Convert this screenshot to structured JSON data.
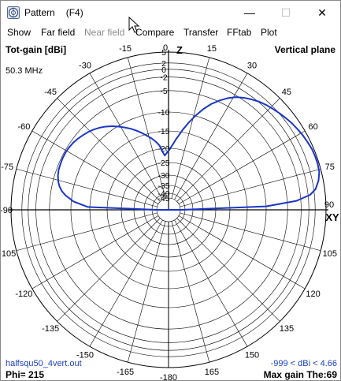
{
  "window": {
    "title": "Pattern",
    "title_shortcut": "(F4)",
    "controls": {
      "minimize": "—",
      "maximize": "☐",
      "close": "✕"
    }
  },
  "menu": [
    {
      "label": "Show",
      "enabled": true
    },
    {
      "label": "Far field",
      "enabled": true
    },
    {
      "label": "Near field",
      "enabled": false
    },
    {
      "label": "Compare",
      "enabled": true
    },
    {
      "label": "Transfer",
      "enabled": true
    },
    {
      "label": "FFtab",
      "enabled": true
    },
    {
      "label": "Plot",
      "enabled": true
    }
  ],
  "plot": {
    "quantity": "Tot-gain [dBi]",
    "plane": "Vertical plane",
    "frequency": "50.3 MHz",
    "file": "halfsqu50_4vert.out",
    "phi": "Phi= 215",
    "gain_range": "-999 < dBi < 4.66",
    "max_gain": "Max gain The:69",
    "axis_labels": {
      "z": "Z",
      "xy": "XY"
    },
    "angle_labels": [
      "0",
      "15",
      "30",
      "45",
      "60",
      "75",
      "90",
      "105",
      "120",
      "135",
      "150",
      "165",
      "-180",
      "-165",
      "-150",
      "-135",
      "-120",
      "-105",
      "-90",
      "-75",
      "-60",
      "-45",
      "-30",
      "-15"
    ],
    "db_ticks": [
      "5",
      "2",
      "0",
      "-2",
      "-5",
      "-10",
      "-15",
      "-20",
      "-25",
      "-30",
      "-35",
      "-40",
      "-45"
    ],
    "curve_color": "#1a35c8",
    "grid_color": "#000000"
  },
  "chart_data": {
    "type": "line",
    "title": "Tot-gain [dBi]",
    "subtitle": "Vertical plane",
    "polar": true,
    "angle_unit": "deg (theta from Z axis)",
    "r_unit": "dBi",
    "r_ticks": [
      5,
      2,
      0,
      -2,
      -5,
      -10,
      -15,
      -20,
      -25,
      -30,
      -35,
      -40,
      -45
    ],
    "series": [
      {
        "theta": [
          -90,
          -88,
          -85,
          -82,
          -80,
          -78,
          -76,
          -73,
          -70,
          -67,
          -64,
          -61,
          -58,
          -55,
          -52,
          -49,
          -46,
          -43,
          -40,
          -37,
          -34,
          -31,
          -28,
          -25,
          -22,
          -19,
          -16,
          -13,
          -10,
          -8,
          -6,
          -4,
          -2,
          0,
          2,
          4,
          6,
          8,
          10,
          13,
          16,
          19,
          22,
          25,
          28,
          31,
          34,
          37,
          40,
          43,
          46,
          49,
          52,
          55,
          58,
          61,
          64,
          67,
          70,
          73,
          76,
          79,
          82,
          84,
          86,
          88,
          90
        ],
        "gain_dbi": [
          -45,
          -14.5,
          -10.6,
          -8.5,
          -7.5,
          -6.8,
          -6.3,
          -5.8,
          -5.5,
          -5.4,
          -5.3,
          -5.3,
          -5.4,
          -5.6,
          -5.9,
          -6.3,
          -6.7,
          -7.2,
          -7.8,
          -8.5,
          -9.3,
          -10.2,
          -11.2,
          -12.2,
          -13.3,
          -14.4,
          -15.6,
          -16.7,
          -18.0,
          -19.0,
          -21.0,
          -22.5,
          -21.7,
          -21.0,
          -19.8,
          -18.7,
          -17.3,
          -16.0,
          -14.4,
          -12.2,
          -10.0,
          -8.0,
          -6.2,
          -4.7,
          -3.4,
          -2.3,
          -1.4,
          -0.6,
          0.2,
          0.9,
          1.5,
          2.1,
          2.6,
          3.1,
          3.5,
          3.9,
          4.2,
          4.5,
          4.6,
          4.6,
          4.4,
          3.7,
          2.5,
          0.6,
          -3.0,
          -10.0,
          -45
        ]
      }
    ],
    "annotations": [
      "50.3 MHz",
      "Phi= 215",
      "-999 < dBi < 4.66",
      "Max gain The:69"
    ]
  }
}
